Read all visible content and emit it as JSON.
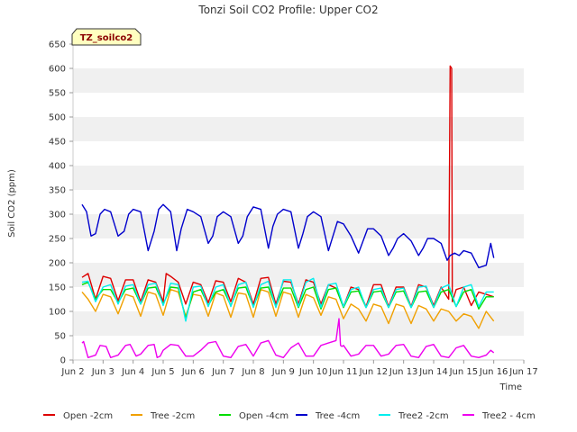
{
  "chart_data": {
    "type": "line",
    "title": "Tonzi Soil CO2 Profile: Upper CO2",
    "xlabel": "Time",
    "ylabel": "Soil CO2 (ppm)",
    "badge": "TZ_soilco2",
    "ylim": [
      0,
      650
    ],
    "yticks": [
      0,
      50,
      100,
      150,
      200,
      250,
      300,
      350,
      400,
      450,
      500,
      550,
      600,
      650
    ],
    "xlim": [
      2,
      17
    ],
    "xticks": [
      2,
      3,
      4,
      5,
      6,
      7,
      8,
      9,
      10,
      11,
      12,
      13,
      14,
      15,
      16,
      17
    ],
    "xtick_labels": [
      "Jun 2",
      "Jun 3",
      "Jun 4",
      "Jun 5",
      "Jun 6",
      "Jun 7",
      "Jun 8",
      "Jun 9",
      "Jun 10",
      "Jun 11",
      "Jun 12",
      "Jun 13",
      "Jun 14",
      "Jun 15",
      "Jun 16",
      "Jun 17"
    ],
    "grid": "horizontal bands",
    "legend_position": "bottom",
    "series": [
      {
        "name": "Open -2cm",
        "color": "#dd0000",
        "x": [
          2.3,
          2.5,
          2.75,
          3.0,
          3.25,
          3.5,
          3.75,
          4.0,
          4.25,
          4.5,
          4.75,
          5.0,
          5.1,
          5.25,
          5.5,
          5.75,
          6.0,
          6.25,
          6.5,
          6.75,
          7.0,
          7.25,
          7.5,
          7.75,
          8.0,
          8.25,
          8.5,
          8.75,
          9.0,
          9.25,
          9.5,
          9.75,
          10.0,
          10.25,
          10.5,
          10.75,
          11.0,
          11.25,
          11.5,
          11.75,
          12.0,
          12.25,
          12.5,
          12.75,
          13.0,
          13.25,
          13.5,
          13.75,
          14.0,
          14.25,
          14.5,
          14.55,
          14.6,
          14.62,
          14.75,
          15.0,
          15.25,
          15.5,
          15.75,
          16.0
        ],
        "y": [
          170,
          178,
          125,
          172,
          168,
          122,
          165,
          165,
          120,
          165,
          160,
          120,
          178,
          172,
          160,
          115,
          160,
          155,
          118,
          163,
          160,
          120,
          168,
          160,
          115,
          168,
          170,
          115,
          162,
          160,
          115,
          165,
          160,
          115,
          155,
          148,
          110,
          150,
          145,
          110,
          155,
          155,
          110,
          150,
          150,
          110,
          155,
          150,
          112,
          150,
          125,
          605,
          600,
          120,
          145,
          150,
          112,
          140,
          135,
          130
        ]
      },
      {
        "name": "Tree -2cm",
        "color": "#f0a000",
        "x": [
          2.3,
          2.5,
          2.75,
          3.0,
          3.25,
          3.5,
          3.75,
          4.0,
          4.25,
          4.5,
          4.75,
          5.0,
          5.25,
          5.5,
          5.75,
          6.0,
          6.25,
          6.5,
          6.75,
          7.0,
          7.25,
          7.5,
          7.75,
          8.0,
          8.25,
          8.5,
          8.75,
          9.0,
          9.25,
          9.5,
          9.75,
          10.0,
          10.25,
          10.5,
          10.75,
          11.0,
          11.25,
          11.5,
          11.75,
          12.0,
          12.25,
          12.5,
          12.75,
          13.0,
          13.25,
          13.5,
          13.75,
          14.0,
          14.25,
          14.5,
          14.75,
          15.0,
          15.25,
          15.5,
          15.75,
          16.0
        ],
        "y": [
          140,
          125,
          100,
          135,
          130,
          95,
          135,
          130,
          90,
          140,
          135,
          92,
          145,
          140,
          90,
          135,
          132,
          90,
          138,
          132,
          88,
          138,
          135,
          88,
          145,
          140,
          90,
          140,
          135,
          88,
          135,
          128,
          92,
          130,
          125,
          85,
          115,
          105,
          80,
          115,
          110,
          75,
          115,
          110,
          75,
          112,
          105,
          80,
          105,
          100,
          80,
          95,
          90,
          65,
          100,
          80
        ]
      },
      {
        "name": "Open -4cm",
        "color": "#00dd00",
        "x": [
          2.3,
          2.5,
          2.75,
          3.0,
          3.25,
          3.5,
          3.75,
          4.0,
          4.25,
          4.5,
          4.75,
          5.0,
          5.25,
          5.5,
          5.75,
          6.0,
          6.25,
          6.5,
          6.75,
          7.0,
          7.25,
          7.5,
          7.75,
          8.0,
          8.25,
          8.5,
          8.75,
          9.0,
          9.25,
          9.5,
          9.75,
          10.0,
          10.25,
          10.5,
          10.75,
          11.0,
          11.25,
          11.5,
          11.75,
          12.0,
          12.25,
          12.5,
          12.75,
          13.0,
          13.25,
          13.5,
          13.75,
          14.0,
          14.25,
          14.5,
          14.75,
          15.0,
          15.25,
          15.5,
          15.75,
          16.0
        ],
        "y": [
          155,
          160,
          125,
          145,
          145,
          118,
          145,
          148,
          115,
          148,
          150,
          115,
          150,
          148,
          85,
          140,
          145,
          112,
          140,
          145,
          112,
          148,
          150,
          110,
          148,
          150,
          110,
          148,
          148,
          108,
          145,
          150,
          105,
          145,
          148,
          108,
          140,
          142,
          108,
          140,
          142,
          108,
          140,
          142,
          108,
          140,
          142,
          108,
          140,
          145,
          110,
          140,
          145,
          105,
          130,
          130
        ]
      },
      {
        "name": "Tree -4cm",
        "color": "#0000cc",
        "x": [
          2.3,
          2.45,
          2.6,
          2.75,
          2.9,
          3.05,
          3.25,
          3.5,
          3.7,
          3.85,
          4.0,
          4.25,
          4.5,
          4.7,
          4.85,
          5.0,
          5.25,
          5.45,
          5.6,
          5.8,
          6.0,
          6.25,
          6.5,
          6.65,
          6.8,
          7.0,
          7.25,
          7.5,
          7.65,
          7.8,
          8.0,
          8.25,
          8.5,
          8.65,
          8.8,
          9.0,
          9.25,
          9.5,
          9.65,
          9.8,
          10.0,
          10.25,
          10.5,
          10.65,
          10.8,
          11.0,
          11.25,
          11.5,
          11.65,
          11.8,
          12.0,
          12.25,
          12.5,
          12.65,
          12.8,
          13.0,
          13.25,
          13.5,
          13.65,
          13.8,
          14.0,
          14.25,
          14.45,
          14.55,
          14.7,
          14.85,
          15.0,
          15.25,
          15.5,
          15.75,
          15.9,
          16.0
        ],
        "y": [
          320,
          305,
          255,
          260,
          300,
          310,
          305,
          255,
          265,
          300,
          310,
          305,
          225,
          265,
          310,
          320,
          305,
          225,
          270,
          310,
          305,
          295,
          240,
          255,
          295,
          305,
          295,
          240,
          255,
          295,
          315,
          310,
          230,
          275,
          300,
          310,
          305,
          230,
          260,
          295,
          305,
          295,
          225,
          255,
          285,
          280,
          255,
          220,
          245,
          270,
          270,
          255,
          215,
          230,
          250,
          260,
          245,
          215,
          230,
          250,
          250,
          240,
          205,
          215,
          220,
          215,
          225,
          220,
          190,
          195,
          240,
          210
        ]
      },
      {
        "name": "Tree2 -2cm",
        "color": "#00eeee",
        "x": [
          2.3,
          2.5,
          2.75,
          3.0,
          3.25,
          3.5,
          3.75,
          4.0,
          4.25,
          4.5,
          4.75,
          5.0,
          5.25,
          5.5,
          5.75,
          6.0,
          6.25,
          6.5,
          6.75,
          7.0,
          7.25,
          7.5,
          7.75,
          8.0,
          8.25,
          8.5,
          8.75,
          9.0,
          9.25,
          9.5,
          9.75,
          10.0,
          10.25,
          10.5,
          10.75,
          11.0,
          11.25,
          11.5,
          11.75,
          12.0,
          12.25,
          12.5,
          12.75,
          13.0,
          13.25,
          13.5,
          13.75,
          14.0,
          14.25,
          14.5,
          14.75,
          15.0,
          15.25,
          15.5,
          15.75,
          16.0
        ],
        "y": [
          160,
          162,
          120,
          150,
          155,
          115,
          152,
          155,
          115,
          155,
          158,
          112,
          158,
          155,
          80,
          150,
          152,
          110,
          150,
          155,
          110,
          155,
          160,
          108,
          155,
          162,
          108,
          165,
          165,
          110,
          160,
          168,
          108,
          155,
          158,
          110,
          145,
          150,
          108,
          145,
          148,
          108,
          145,
          148,
          108,
          150,
          152,
          108,
          148,
          155,
          110,
          150,
          155,
          110,
          140,
          140
        ]
      },
      {
        "name": "Tree2 - 4cm",
        "color": "#ee00ee",
        "x": [
          2.3,
          2.35,
          2.5,
          2.75,
          2.9,
          3.1,
          3.25,
          3.5,
          3.75,
          3.9,
          4.1,
          4.25,
          4.5,
          4.7,
          4.8,
          4.9,
          5.0,
          5.25,
          5.5,
          5.75,
          6.0,
          6.25,
          6.5,
          6.75,
          7.0,
          7.25,
          7.5,
          7.75,
          8.0,
          8.25,
          8.5,
          8.75,
          9.0,
          9.25,
          9.5,
          9.75,
          10.0,
          10.25,
          10.5,
          10.75,
          10.85,
          10.9,
          10.95,
          11.0,
          11.25,
          11.5,
          11.75,
          12.0,
          12.25,
          12.5,
          12.75,
          13.0,
          13.25,
          13.5,
          13.75,
          14.0,
          14.25,
          14.5,
          14.75,
          15.0,
          15.25,
          15.5,
          15.75,
          15.9,
          16.0
        ],
        "y": [
          35,
          38,
          5,
          10,
          30,
          28,
          5,
          10,
          30,
          32,
          8,
          12,
          30,
          32,
          5,
          8,
          20,
          32,
          30,
          8,
          8,
          20,
          35,
          38,
          8,
          5,
          28,
          32,
          8,
          35,
          40,
          10,
          5,
          25,
          35,
          8,
          8,
          30,
          35,
          40,
          85,
          30,
          28,
          30,
          8,
          12,
          30,
          30,
          8,
          12,
          30,
          32,
          8,
          5,
          28,
          32,
          8,
          5,
          25,
          30,
          8,
          5,
          10,
          20,
          15
        ]
      }
    ]
  }
}
